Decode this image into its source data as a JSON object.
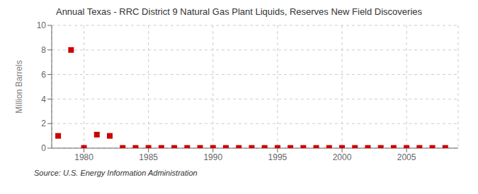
{
  "chart_data": {
    "type": "scatter",
    "title": "Annual Texas - RRC District 9 Natural Gas Plant Liquids, Reserves New Field Discoveries",
    "ylabel": "Million Barrels",
    "annotations": [
      "Source: U.S. Energy Information Administration"
    ],
    "x": [
      1978,
      1979,
      1980,
      1981,
      1982,
      1983,
      1984,
      1985,
      1986,
      1987,
      1988,
      1989,
      1990,
      1991,
      1992,
      1993,
      1994,
      1995,
      1996,
      1997,
      1998,
      1999,
      2000,
      2001,
      2002,
      2003,
      2004,
      2005,
      2006,
      2007,
      2008
    ],
    "values": [
      1.0,
      8.0,
      0.02,
      1.1,
      1.0,
      0.02,
      0.02,
      0.02,
      0.02,
      0.02,
      0.02,
      0.02,
      0.02,
      0.02,
      0.02,
      0.02,
      0.02,
      0.02,
      0.02,
      0.02,
      0.02,
      0.02,
      0.02,
      0.02,
      0.02,
      0.02,
      0.02,
      0.02,
      0.02,
      0.02,
      0.02
    ],
    "color": "#cc0000",
    "marker": "square",
    "xlim": [
      1977.5,
      2009
    ],
    "xticks": [
      1980,
      1985,
      1990,
      1995,
      2000,
      2005
    ],
    "ylim": [
      0,
      10
    ],
    "yticks": [
      0,
      2,
      4,
      6,
      8,
      10
    ],
    "grid": true
  }
}
